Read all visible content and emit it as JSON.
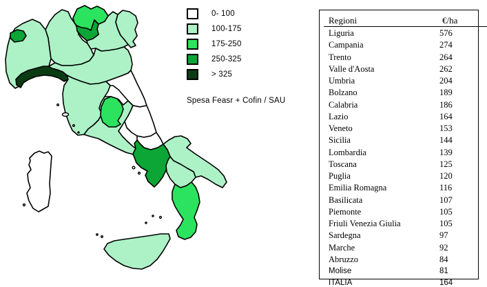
{
  "title": "Spesa Feasr + Cofin / SAU",
  "legend": {
    "bins": [
      {
        "label": "0- 100",
        "color": "#FFFFFF",
        "min": 0,
        "max": 100
      },
      {
        "label": "100-175",
        "color": "#ACF2C6",
        "min": 100,
        "max": 175
      },
      {
        "label": "175-250",
        "color": "#2CE35F",
        "min": 175,
        "max": 250
      },
      {
        "label": "250-325",
        "color": "#0CA636",
        "min": 250,
        "max": 325
      },
      {
        "label": "> 325",
        "color": "#0A3C14",
        "min": 325,
        "max": null
      }
    ]
  },
  "table": {
    "headers": [
      "Regioni",
      "€/ha"
    ],
    "rows": [
      {
        "label": "Liguria",
        "value": "576"
      },
      {
        "label": "Campania",
        "value": "274"
      },
      {
        "label": "Trento",
        "value": "264"
      },
      {
        "label": "Valle d'Aosta",
        "value": "262"
      },
      {
        "label": "Umbria",
        "value": "204"
      },
      {
        "label": "Bolzano",
        "value": "189"
      },
      {
        "label": "Calabria",
        "value": "186"
      },
      {
        "label": "Lazio",
        "value": "164"
      },
      {
        "label": "Veneto",
        "value": "153"
      },
      {
        "label": "Sicilia",
        "value": "144"
      },
      {
        "label": "Lombardia",
        "value": "139"
      },
      {
        "label": "Toscana",
        "value": "125"
      },
      {
        "label": "Puglia",
        "value": "120"
      },
      {
        "label": "Emilia Romagna",
        "value": "116"
      },
      {
        "label": "Basilicata",
        "value": "107"
      },
      {
        "label": "Piemonte",
        "value": "105"
      },
      {
        "label": "Friuli Venezia Giulia",
        "value": "105"
      },
      {
        "label": "Sardegna",
        "value": "97"
      },
      {
        "label": "Marche",
        "value": "92"
      },
      {
        "label": "Abruzzo",
        "value": "84"
      },
      {
        "label": "Molise",
        "value": "81"
      },
      {
        "label": "ITALIA",
        "value": "164"
      }
    ]
  },
  "chart_data": {
    "type": "heatmap",
    "variant": "choropleth",
    "geography": "Italy regions",
    "title": "Spesa Feasr + Cofin / SAU",
    "unit": "€/ha",
    "legend_bins": [
      "0- 100",
      "100-175",
      "175-250",
      "250-325",
      "> 325"
    ],
    "legend_position": "top-right-of-map",
    "regions": {
      "Liguria": 576,
      "Campania": 274,
      "Trento": 264,
      "Valle d'Aosta": 262,
      "Umbria": 204,
      "Bolzano": 189,
      "Calabria": 186,
      "Lazio": 164,
      "Veneto": 153,
      "Sicilia": 144,
      "Lombardia": 139,
      "Toscana": 125,
      "Puglia": 120,
      "Emilia Romagna": 116,
      "Basilicata": 107,
      "Piemonte": 105,
      "Friuli Venezia Giulia": 105,
      "Sardegna": 97,
      "Marche": 92,
      "Abruzzo": 84,
      "Molise": 81
    },
    "italy_total": 164
  }
}
